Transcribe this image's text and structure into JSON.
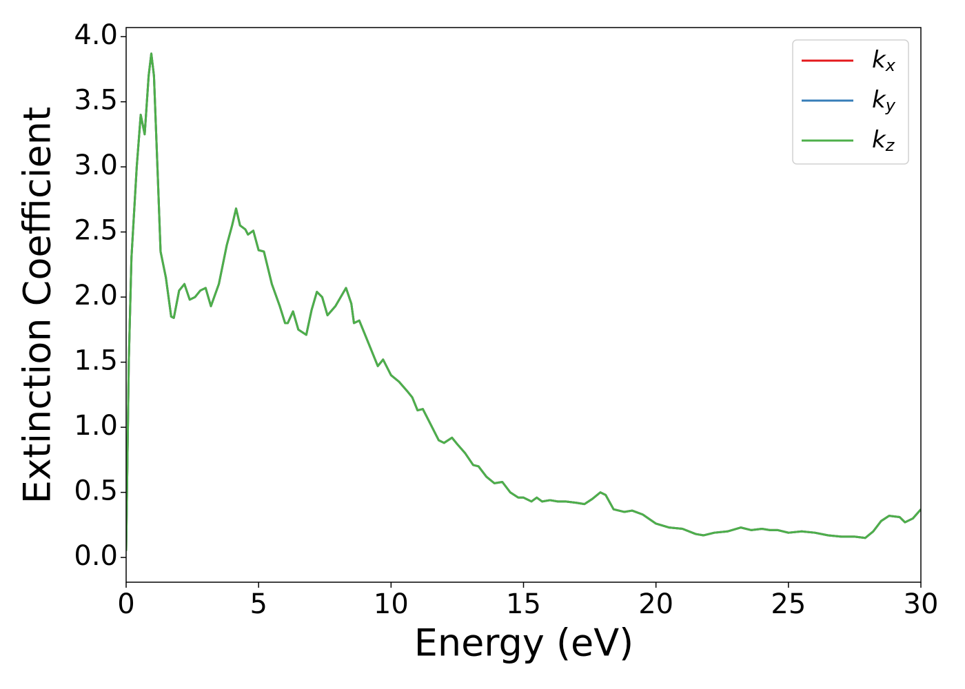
{
  "chart_data": {
    "type": "line",
    "xlabel": "Energy (eV)",
    "ylabel": "Extinction Coefficient",
    "xlim": [
      0,
      30
    ],
    "ylim": [
      -0.19,
      4.07
    ],
    "xticks": [
      0,
      5,
      10,
      15,
      20,
      25,
      30
    ],
    "yticks": [
      {
        "value": 0,
        "label": "0.0"
      },
      {
        "value": 0.5,
        "label": "0.5"
      },
      {
        "value": 1,
        "label": "1.0"
      },
      {
        "value": 1.5,
        "label": "1.5"
      },
      {
        "value": 2,
        "label": "2.0"
      },
      {
        "value": 2.5,
        "label": "2.5"
      },
      {
        "value": 3,
        "label": "3.0"
      },
      {
        "value": 3.5,
        "label": "3.5"
      },
      {
        "value": 4,
        "label": "4.0"
      }
    ],
    "legend": "upper right",
    "x": [
      0,
      0.1,
      0.2,
      0.4,
      0.55,
      0.7,
      0.85,
      0.95,
      1.05,
      1.2,
      1.3,
      1.5,
      1.7,
      1.8,
      2.0,
      2.2,
      2.4,
      2.6,
      2.8,
      3.0,
      3.2,
      3.5,
      3.8,
      4.0,
      4.15,
      4.3,
      4.5,
      4.6,
      4.8,
      5.0,
      5.2,
      5.5,
      5.8,
      6.0,
      6.1,
      6.3,
      6.5,
      6.8,
      7.0,
      7.2,
      7.4,
      7.6,
      7.9,
      8.1,
      8.3,
      8.5,
      8.6,
      8.8,
      9.0,
      9.2,
      9.5,
      9.7,
      10,
      10.3,
      10.6,
      10.8,
      11.0,
      11.2,
      11.5,
      11.8,
      12.0,
      12.3,
      12.5,
      12.8,
      13.1,
      13.3,
      13.6,
      13.9,
      14.2,
      14.5,
      14.8,
      15.0,
      15.3,
      15.5,
      15.7,
      16.0,
      16.3,
      16.6,
      17.0,
      17.3,
      17.6,
      17.9,
      18.1,
      18.4,
      18.8,
      19.1,
      19.5,
      20.0,
      20.5,
      21.0,
      21.5,
      21.8,
      22.2,
      22.7,
      23.2,
      23.6,
      24.0,
      24.3,
      24.6,
      25.0,
      25.5,
      26.0,
      26.5,
      27.0,
      27.5,
      27.9,
      28.2,
      28.5,
      28.8,
      29.2,
      29.4,
      29.7,
      30.0
    ],
    "series": [
      {
        "name": "kx",
        "color": "#e41a1c",
        "values": [
          0.05,
          1.5,
          2.3,
          3.0,
          3.4,
          3.25,
          3.7,
          3.87,
          3.7,
          2.9,
          2.35,
          2.15,
          1.85,
          1.84,
          2.05,
          2.1,
          1.98,
          2.0,
          2.05,
          2.07,
          1.93,
          2.1,
          2.4,
          2.55,
          2.68,
          2.55,
          2.52,
          2.48,
          2.51,
          2.36,
          2.35,
          2.1,
          1.93,
          1.8,
          1.8,
          1.89,
          1.75,
          1.71,
          1.9,
          2.04,
          2.0,
          1.86,
          1.93,
          2.0,
          2.07,
          1.95,
          1.8,
          1.82,
          1.72,
          1.62,
          1.47,
          1.52,
          1.4,
          1.35,
          1.28,
          1.23,
          1.13,
          1.14,
          1.02,
          0.9,
          0.88,
          0.92,
          0.87,
          0.8,
          0.71,
          0.7,
          0.62,
          0.57,
          0.58,
          0.5,
          0.46,
          0.46,
          0.43,
          0.46,
          0.43,
          0.44,
          0.43,
          0.43,
          0.42,
          0.41,
          0.45,
          0.5,
          0.48,
          0.37,
          0.35,
          0.36,
          0.33,
          0.26,
          0.23,
          0.22,
          0.18,
          0.17,
          0.19,
          0.2,
          0.23,
          0.21,
          0.22,
          0.21,
          0.21,
          0.19,
          0.2,
          0.19,
          0.17,
          0.16,
          0.16,
          0.15,
          0.2,
          0.28,
          0.32,
          0.31,
          0.27,
          0.3,
          0.37
        ]
      },
      {
        "name": "ky",
        "color": "#377eb8",
        "values": [
          0.05,
          1.5,
          2.3,
          3.0,
          3.4,
          3.25,
          3.7,
          3.87,
          3.7,
          2.9,
          2.35,
          2.15,
          1.85,
          1.84,
          2.05,
          2.1,
          1.98,
          2.0,
          2.05,
          2.07,
          1.93,
          2.1,
          2.4,
          2.55,
          2.68,
          2.55,
          2.52,
          2.48,
          2.51,
          2.36,
          2.35,
          2.1,
          1.93,
          1.8,
          1.8,
          1.89,
          1.75,
          1.71,
          1.9,
          2.04,
          2.0,
          1.86,
          1.93,
          2.0,
          2.07,
          1.95,
          1.8,
          1.82,
          1.72,
          1.62,
          1.47,
          1.52,
          1.4,
          1.35,
          1.28,
          1.23,
          1.13,
          1.14,
          1.02,
          0.9,
          0.88,
          0.92,
          0.87,
          0.8,
          0.71,
          0.7,
          0.62,
          0.57,
          0.58,
          0.5,
          0.46,
          0.46,
          0.43,
          0.46,
          0.43,
          0.44,
          0.43,
          0.43,
          0.42,
          0.41,
          0.45,
          0.5,
          0.48,
          0.37,
          0.35,
          0.36,
          0.33,
          0.26,
          0.23,
          0.22,
          0.18,
          0.17,
          0.19,
          0.2,
          0.23,
          0.21,
          0.22,
          0.21,
          0.21,
          0.19,
          0.2,
          0.19,
          0.17,
          0.16,
          0.16,
          0.15,
          0.2,
          0.28,
          0.32,
          0.31,
          0.27,
          0.3,
          0.37
        ]
      },
      {
        "name": "kz",
        "color": "#4daf4a",
        "values": [
          0.05,
          1.5,
          2.3,
          3.0,
          3.4,
          3.25,
          3.7,
          3.87,
          3.7,
          2.9,
          2.35,
          2.15,
          1.85,
          1.84,
          2.05,
          2.1,
          1.98,
          2.0,
          2.05,
          2.07,
          1.93,
          2.1,
          2.4,
          2.55,
          2.68,
          2.55,
          2.52,
          2.48,
          2.51,
          2.36,
          2.35,
          2.1,
          1.93,
          1.8,
          1.8,
          1.89,
          1.75,
          1.71,
          1.9,
          2.04,
          2.0,
          1.86,
          1.93,
          2.0,
          2.07,
          1.95,
          1.8,
          1.82,
          1.72,
          1.62,
          1.47,
          1.52,
          1.4,
          1.35,
          1.28,
          1.23,
          1.13,
          1.14,
          1.02,
          0.9,
          0.88,
          0.92,
          0.87,
          0.8,
          0.71,
          0.7,
          0.62,
          0.57,
          0.58,
          0.5,
          0.46,
          0.46,
          0.43,
          0.46,
          0.43,
          0.44,
          0.43,
          0.43,
          0.42,
          0.41,
          0.45,
          0.5,
          0.48,
          0.37,
          0.35,
          0.36,
          0.33,
          0.26,
          0.23,
          0.22,
          0.18,
          0.17,
          0.19,
          0.2,
          0.23,
          0.21,
          0.22,
          0.21,
          0.21,
          0.19,
          0.2,
          0.19,
          0.17,
          0.16,
          0.16,
          0.15,
          0.2,
          0.28,
          0.32,
          0.31,
          0.27,
          0.3,
          0.37
        ]
      }
    ]
  }
}
